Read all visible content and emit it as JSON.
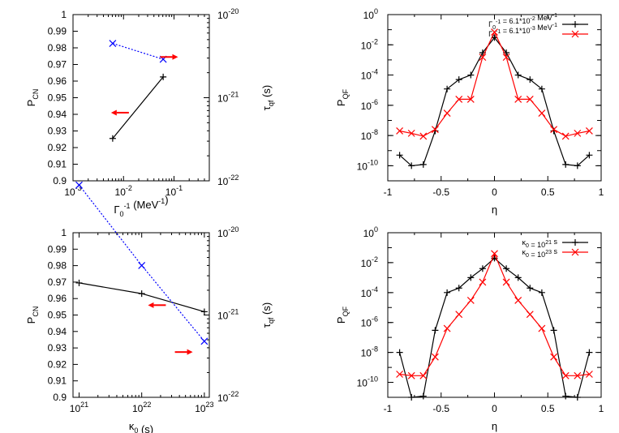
{
  "colors": {
    "black": "#000000",
    "red": "#ff0000",
    "blue": "#0000ff"
  },
  "chart_data": [
    {
      "id": "tl",
      "type": "line",
      "x_scale": "log",
      "xlim": [
        0.001,
        0.5
      ],
      "x_ticks": [
        {
          "value": 0.001,
          "mantissa": "10",
          "exponent": "-3"
        },
        {
          "value": 0.01,
          "mantissa": "10",
          "exponent": "-2"
        },
        {
          "value": 0.1,
          "mantissa": "10",
          "exponent": "-1"
        }
      ],
      "x_minor_decades": [
        0.001,
        0.01,
        0.1
      ],
      "xlabel": {
        "base": "Γ",
        "sub": "0",
        "sup": "-1",
        "rest": " (MeV",
        "rest_sup": "-1",
        "close": ")"
      },
      "ylim": [
        0.9,
        1.0
      ],
      "y_ticks": [
        "0.9",
        "0.91",
        "0.92",
        "0.93",
        "0.94",
        "0.95",
        "0.96",
        "0.97",
        "0.98",
        "0.99",
        "1"
      ],
      "ylabel": {
        "base": "P",
        "sub": "CN"
      },
      "y2_scale": "log",
      "y2lim": [
        1e-22,
        1e-20
      ],
      "y2_ticks": [
        {
          "value": 1e-22,
          "mantissa": "10",
          "exponent": "-22"
        },
        {
          "value": 1e-21,
          "mantissa": "10",
          "exponent": "-21"
        },
        {
          "value": 1e-20,
          "mantissa": "10",
          "exponent": "-20"
        }
      ],
      "y2label": {
        "base": "τ",
        "sub": "qf",
        "rest": " (s)"
      },
      "series": [
        {
          "name": "P_CN",
          "axis": "left",
          "color": "#000000",
          "marker": "plus",
          "dash": false,
          "x": [
            0.0061,
            0.061
          ],
          "y": [
            0.9255,
            0.9625
          ]
        },
        {
          "name": "tau_qf",
          "axis": "right",
          "color": "#0000ff",
          "marker": "cross",
          "dash": true,
          "x": [
            0.0061,
            0.061
          ],
          "y": [
            4.5e-21,
            2.9e-21
          ]
        }
      ],
      "arrows": [
        {
          "direction": "left",
          "color": "#ff0000",
          "x": 0.0085,
          "y": 0.941
        },
        {
          "direction": "right",
          "color": "#ff0000",
          "x": 0.08,
          "y": 0.9745
        }
      ],
      "legend": []
    },
    {
      "id": "tr",
      "type": "line",
      "x_scale": "linear",
      "xlim": [
        -1,
        1
      ],
      "x_ticks": [
        {
          "value": -1,
          "label": "-1"
        },
        {
          "value": -0.5,
          "label": "-0.5"
        },
        {
          "value": 0,
          "label": "0"
        },
        {
          "value": 0.5,
          "label": "0.5"
        },
        {
          "value": 1,
          "label": "1"
        }
      ],
      "x_minor_step": 0.25,
      "xlabel": {
        "base": "η"
      },
      "y_scale": "log",
      "ylim": [
        1e-11,
        1
      ],
      "y_ticks": [
        {
          "value": 1e-10,
          "mantissa": "10",
          "exponent": "-10"
        },
        {
          "value": 1e-08,
          "mantissa": "10",
          "exponent": "-8"
        },
        {
          "value": 1e-06,
          "mantissa": "10",
          "exponent": "-6"
        },
        {
          "value": 0.0001,
          "mantissa": "10",
          "exponent": "-4"
        },
        {
          "value": 0.01,
          "mantissa": "10",
          "exponent": "-2"
        },
        {
          "value": 1,
          "mantissa": "10",
          "exponent": "0"
        }
      ],
      "ylabel": {
        "base": "P",
        "sub": "QF"
      },
      "series": [
        {
          "name": "Γ0^-1 = 6.1*10^-2 MeV^-1",
          "color": "#000000",
          "marker": "plus",
          "dash": false,
          "x": [
            -0.889,
            -0.778,
            -0.667,
            -0.556,
            -0.444,
            -0.333,
            -0.222,
            -0.111,
            0,
            0.111,
            0.222,
            0.333,
            0.444,
            0.556,
            0.667,
            0.778,
            0.889
          ],
          "y": [
            5e-10,
            1e-10,
            1.2e-10,
            2e-08,
            1.2e-05,
            5e-05,
            0.0001,
            0.003,
            0.03,
            0.003,
            0.0001,
            5e-05,
            1.2e-05,
            2e-08,
            1.2e-10,
            1e-10,
            5e-10
          ]
        },
        {
          "name": "Γ0^-1 = 6.1*10^-3 MeV^-1",
          "color": "#ff0000",
          "marker": "cross",
          "dash": false,
          "x": [
            -0.889,
            -0.778,
            -0.667,
            -0.556,
            -0.444,
            -0.333,
            -0.222,
            -0.111,
            0,
            0.111,
            0.222,
            0.333,
            0.444,
            0.556,
            0.667,
            0.778,
            0.889
          ],
          "y": [
            2e-08,
            1.4e-08,
            9e-09,
            2.5e-08,
            3e-07,
            2.5e-06,
            2.5e-06,
            0.0015,
            0.07,
            0.0015,
            2.5e-06,
            2.5e-06,
            3e-07,
            2.5e-08,
            9e-09,
            1.4e-08,
            2e-08
          ]
        }
      ],
      "legend": [
        {
          "base": "Γ",
          "sub": "0",
          "sup": "-1",
          "pre": " = 6.1*10",
          "pre_sup": "-2",
          "post": " MeV",
          "post_sup": "-1",
          "color": "#000000",
          "marker": "plus"
        },
        {
          "base": "Γ",
          "sub": "0",
          "sup": "-1",
          "pre": " = 6.1*10",
          "pre_sup": "-3",
          "post": " MeV",
          "post_sup": "-1",
          "color": "#ff0000",
          "marker": "cross"
        }
      ]
    },
    {
      "id": "bl",
      "type": "line",
      "x_scale": "log",
      "xlim": [
        8e+20,
        1.2e+23
      ],
      "x_ticks": [
        {
          "value": 1e+21,
          "mantissa": "10",
          "exponent": "21"
        },
        {
          "value": 1e+22,
          "mantissa": "10",
          "exponent": "22"
        },
        {
          "value": 1e+23,
          "mantissa": "10",
          "exponent": "23"
        }
      ],
      "x_minor_decades": [
        1e+21,
        1e+22
      ],
      "xlabel": {
        "base": "κ",
        "sub": "0",
        "rest": " (s)"
      },
      "ylim": [
        0.9,
        1.0
      ],
      "y_ticks": [
        "0.9",
        "0.91",
        "0.92",
        "0.93",
        "0.94",
        "0.95",
        "0.96",
        "0.97",
        "0.98",
        "0.99",
        "1"
      ],
      "ylabel": {
        "base": "P",
        "sub": "CN"
      },
      "y2_scale": "log",
      "y2lim": [
        1e-22,
        1e-20
      ],
      "y2_ticks": [
        {
          "value": 1e-22,
          "mantissa": "10",
          "exponent": "-22"
        },
        {
          "value": 1e-21,
          "mantissa": "10",
          "exponent": "-21"
        },
        {
          "value": 1e-20,
          "mantissa": "10",
          "exponent": "-20"
        }
      ],
      "y2label": {
        "base": "τ",
        "sub": "qf",
        "rest": " (s)"
      },
      "series": [
        {
          "name": "P_CN",
          "axis": "left",
          "color": "#000000",
          "marker": "plus",
          "dash": false,
          "x": [
            1e+21,
            1e+22,
            1e+23
          ],
          "y": [
            0.9695,
            0.963,
            0.952
          ]
        },
        {
          "name": "tau_qf",
          "axis": "right",
          "color": "#0000ff",
          "marker": "cross",
          "dash": true,
          "x": [
            1e+21,
            1e+22,
            1e+23
          ],
          "y": [
            3.8e-20,
            4e-21,
            4.8e-22
          ]
        }
      ],
      "arrows": [
        {
          "direction": "left",
          "color": "#ff0000",
          "x": 1.75e+22,
          "y": 0.956
        },
        {
          "direction": "right",
          "color": "#ff0000",
          "x": 4.7e+22,
          "y": 0.9275
        }
      ],
      "legend": []
    },
    {
      "id": "br",
      "type": "line",
      "x_scale": "linear",
      "xlim": [
        -1,
        1
      ],
      "x_ticks": [
        {
          "value": -1,
          "label": "-1"
        },
        {
          "value": -0.5,
          "label": "-0.5"
        },
        {
          "value": 0,
          "label": "0"
        },
        {
          "value": 0.5,
          "label": "0.5"
        },
        {
          "value": 1,
          "label": "1"
        }
      ],
      "x_minor_step": 0.25,
      "xlabel": {
        "base": "η"
      },
      "y_scale": "log",
      "ylim": [
        1e-11,
        1
      ],
      "y_ticks": [
        {
          "value": 1e-10,
          "mantissa": "10",
          "exponent": "-10"
        },
        {
          "value": 1e-08,
          "mantissa": "10",
          "exponent": "-8"
        },
        {
          "value": 1e-06,
          "mantissa": "10",
          "exponent": "-6"
        },
        {
          "value": 0.0001,
          "mantissa": "10",
          "exponent": "-4"
        },
        {
          "value": 0.01,
          "mantissa": "10",
          "exponent": "-2"
        },
        {
          "value": 1,
          "mantissa": "10",
          "exponent": "0"
        }
      ],
      "ylabel": {
        "base": "P",
        "sub": "QF"
      },
      "series": [
        {
          "name": "κ0 = 10^21 s",
          "color": "#000000",
          "marker": "plus",
          "dash": false,
          "x": [
            -0.889,
            -0.778,
            -0.667,
            -0.556,
            -0.444,
            -0.333,
            -0.222,
            -0.111,
            0,
            0.111,
            0.222,
            0.333,
            0.444,
            0.556,
            0.667,
            0.778,
            0.889
          ],
          "y": [
            1e-08,
            1e-11,
            1.2e-11,
            3e-07,
            0.0001,
            0.0002,
            0.001,
            0.004,
            0.02,
            0.004,
            0.001,
            0.0002,
            0.0001,
            3e-07,
            1.2e-11,
            1e-11,
            1e-08
          ]
        },
        {
          "name": "κ0 = 10^23 s",
          "color": "#ff0000",
          "marker": "cross",
          "dash": false,
          "x": [
            -0.889,
            -0.778,
            -0.667,
            -0.556,
            -0.444,
            -0.333,
            -0.222,
            -0.111,
            0,
            0.111,
            0.222,
            0.333,
            0.444,
            0.556,
            0.667,
            0.778,
            0.889
          ],
          "y": [
            3.5e-10,
            2.8e-10,
            2.8e-10,
            5e-09,
            4e-07,
            3.5e-06,
            3e-05,
            0.0005,
            0.04,
            0.0005,
            3e-05,
            3.5e-06,
            4e-07,
            5e-09,
            2.8e-10,
            2.8e-10,
            3.5e-10
          ]
        }
      ],
      "legend": [
        {
          "base": "κ",
          "sub": "0",
          "pre": " = 10",
          "pre_sup": "21",
          "post": " s",
          "color": "#000000",
          "marker": "plus"
        },
        {
          "base": "κ",
          "sub": "0",
          "pre": " = 10",
          "pre_sup": "23",
          "post": " s",
          "color": "#ff0000",
          "marker": "cross"
        }
      ]
    }
  ]
}
